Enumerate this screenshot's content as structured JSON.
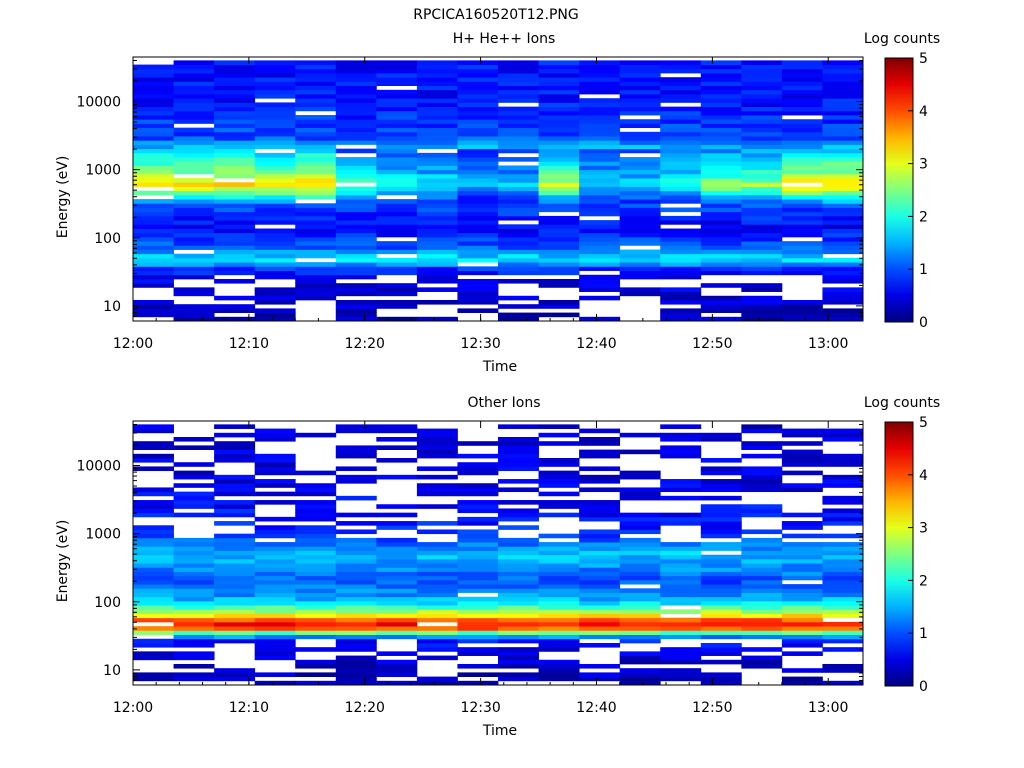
{
  "figure_title": "RPCICA160520T12.PNG",
  "colorbar": {
    "label": "Log counts",
    "min": 0,
    "max": 5,
    "ticks": [
      "0",
      "1",
      "2",
      "3",
      "4",
      "5"
    ],
    "colormap": "jet"
  },
  "chart_data": [
    {
      "type": "heatmap",
      "title": "H+ He++ Ions",
      "xlabel": "Time",
      "ylabel": "Energy (eV)",
      "y_scale": "log",
      "ylim": [
        6,
        45000
      ],
      "xlim": [
        "12:00",
        "13:03"
      ],
      "x_ticks": [
        "12:00",
        "12:10",
        "12:20",
        "12:30",
        "12:40",
        "12:50",
        "13:00"
      ],
      "y_ticks": [
        "10",
        "100",
        "1000",
        "10000"
      ],
      "time_bins": [
        "12:00",
        "12:03",
        "12:06",
        "12:10",
        "12:13",
        "12:16",
        "12:20",
        "12:23",
        "12:26",
        "12:30",
        "12:33",
        "12:36",
        "12:40",
        "12:43",
        "12:46",
        "12:50",
        "12:53",
        "12:56"
      ],
      "profile_log_counts_vs_energy": [
        {
          "energy": 7,
          "value": 0.3
        },
        {
          "energy": 12,
          "value": 0.4
        },
        {
          "energy": 22,
          "value": 0.5
        },
        {
          "energy": 35,
          "value": 0.8
        },
        {
          "energy": 45,
          "value": 1.7
        },
        {
          "energy": 55,
          "value": 1.6
        },
        {
          "energy": 70,
          "value": 1.1
        },
        {
          "energy": 150,
          "value": 0.6
        },
        {
          "energy": 300,
          "value": 1.0
        },
        {
          "energy": 600,
          "value": 3.3
        },
        {
          "energy": 900,
          "value": 2.5
        },
        {
          "energy": 1500,
          "value": 2.0
        },
        {
          "energy": 3000,
          "value": 1.0
        },
        {
          "energy": 10000,
          "value": 0.7
        },
        {
          "energy": 40000,
          "value": 0.7
        }
      ],
      "peak_by_time_bin": [
        3.4,
        3.3,
        3.3,
        3.1,
        3.4,
        2.2,
        2.0,
        1.9,
        1.6,
        1.7,
        2.8,
        1.8,
        1.8,
        2.1,
        2.6,
        2.7,
        3.3,
        3.4
      ]
    },
    {
      "type": "heatmap",
      "title": "Other Ions",
      "xlabel": "Time",
      "ylabel": "Energy (eV)",
      "y_scale": "log",
      "ylim": [
        6,
        45000
      ],
      "xlim": [
        "12:00",
        "13:03"
      ],
      "x_ticks": [
        "12:00",
        "12:10",
        "12:20",
        "12:30",
        "12:40",
        "12:50",
        "13:00"
      ],
      "y_ticks": [
        "10",
        "100",
        "1000",
        "10000"
      ],
      "time_bins": [
        "12:00",
        "12:03",
        "12:06",
        "12:10",
        "12:13",
        "12:16",
        "12:20",
        "12:23",
        "12:26",
        "12:30",
        "12:33",
        "12:36",
        "12:40",
        "12:43",
        "12:46",
        "12:50",
        "12:53",
        "12:56"
      ],
      "profile_log_counts_vs_energy": [
        {
          "energy": 7,
          "value": 0.3
        },
        {
          "energy": 15,
          "value": 0.4
        },
        {
          "energy": 28,
          "value": 0.7
        },
        {
          "energy": 35,
          "value": 2.2
        },
        {
          "energy": 42,
          "value": 4.2
        },
        {
          "energy": 50,
          "value": 4.4
        },
        {
          "energy": 65,
          "value": 3.0
        },
        {
          "energy": 100,
          "value": 1.6
        },
        {
          "energy": 200,
          "value": 1.0
        },
        {
          "energy": 500,
          "value": 1.6
        },
        {
          "energy": 1000,
          "value": 0.8
        },
        {
          "energy": 5000,
          "value": 0.5
        },
        {
          "energy": 40000,
          "value": 0.4
        }
      ]
    }
  ]
}
